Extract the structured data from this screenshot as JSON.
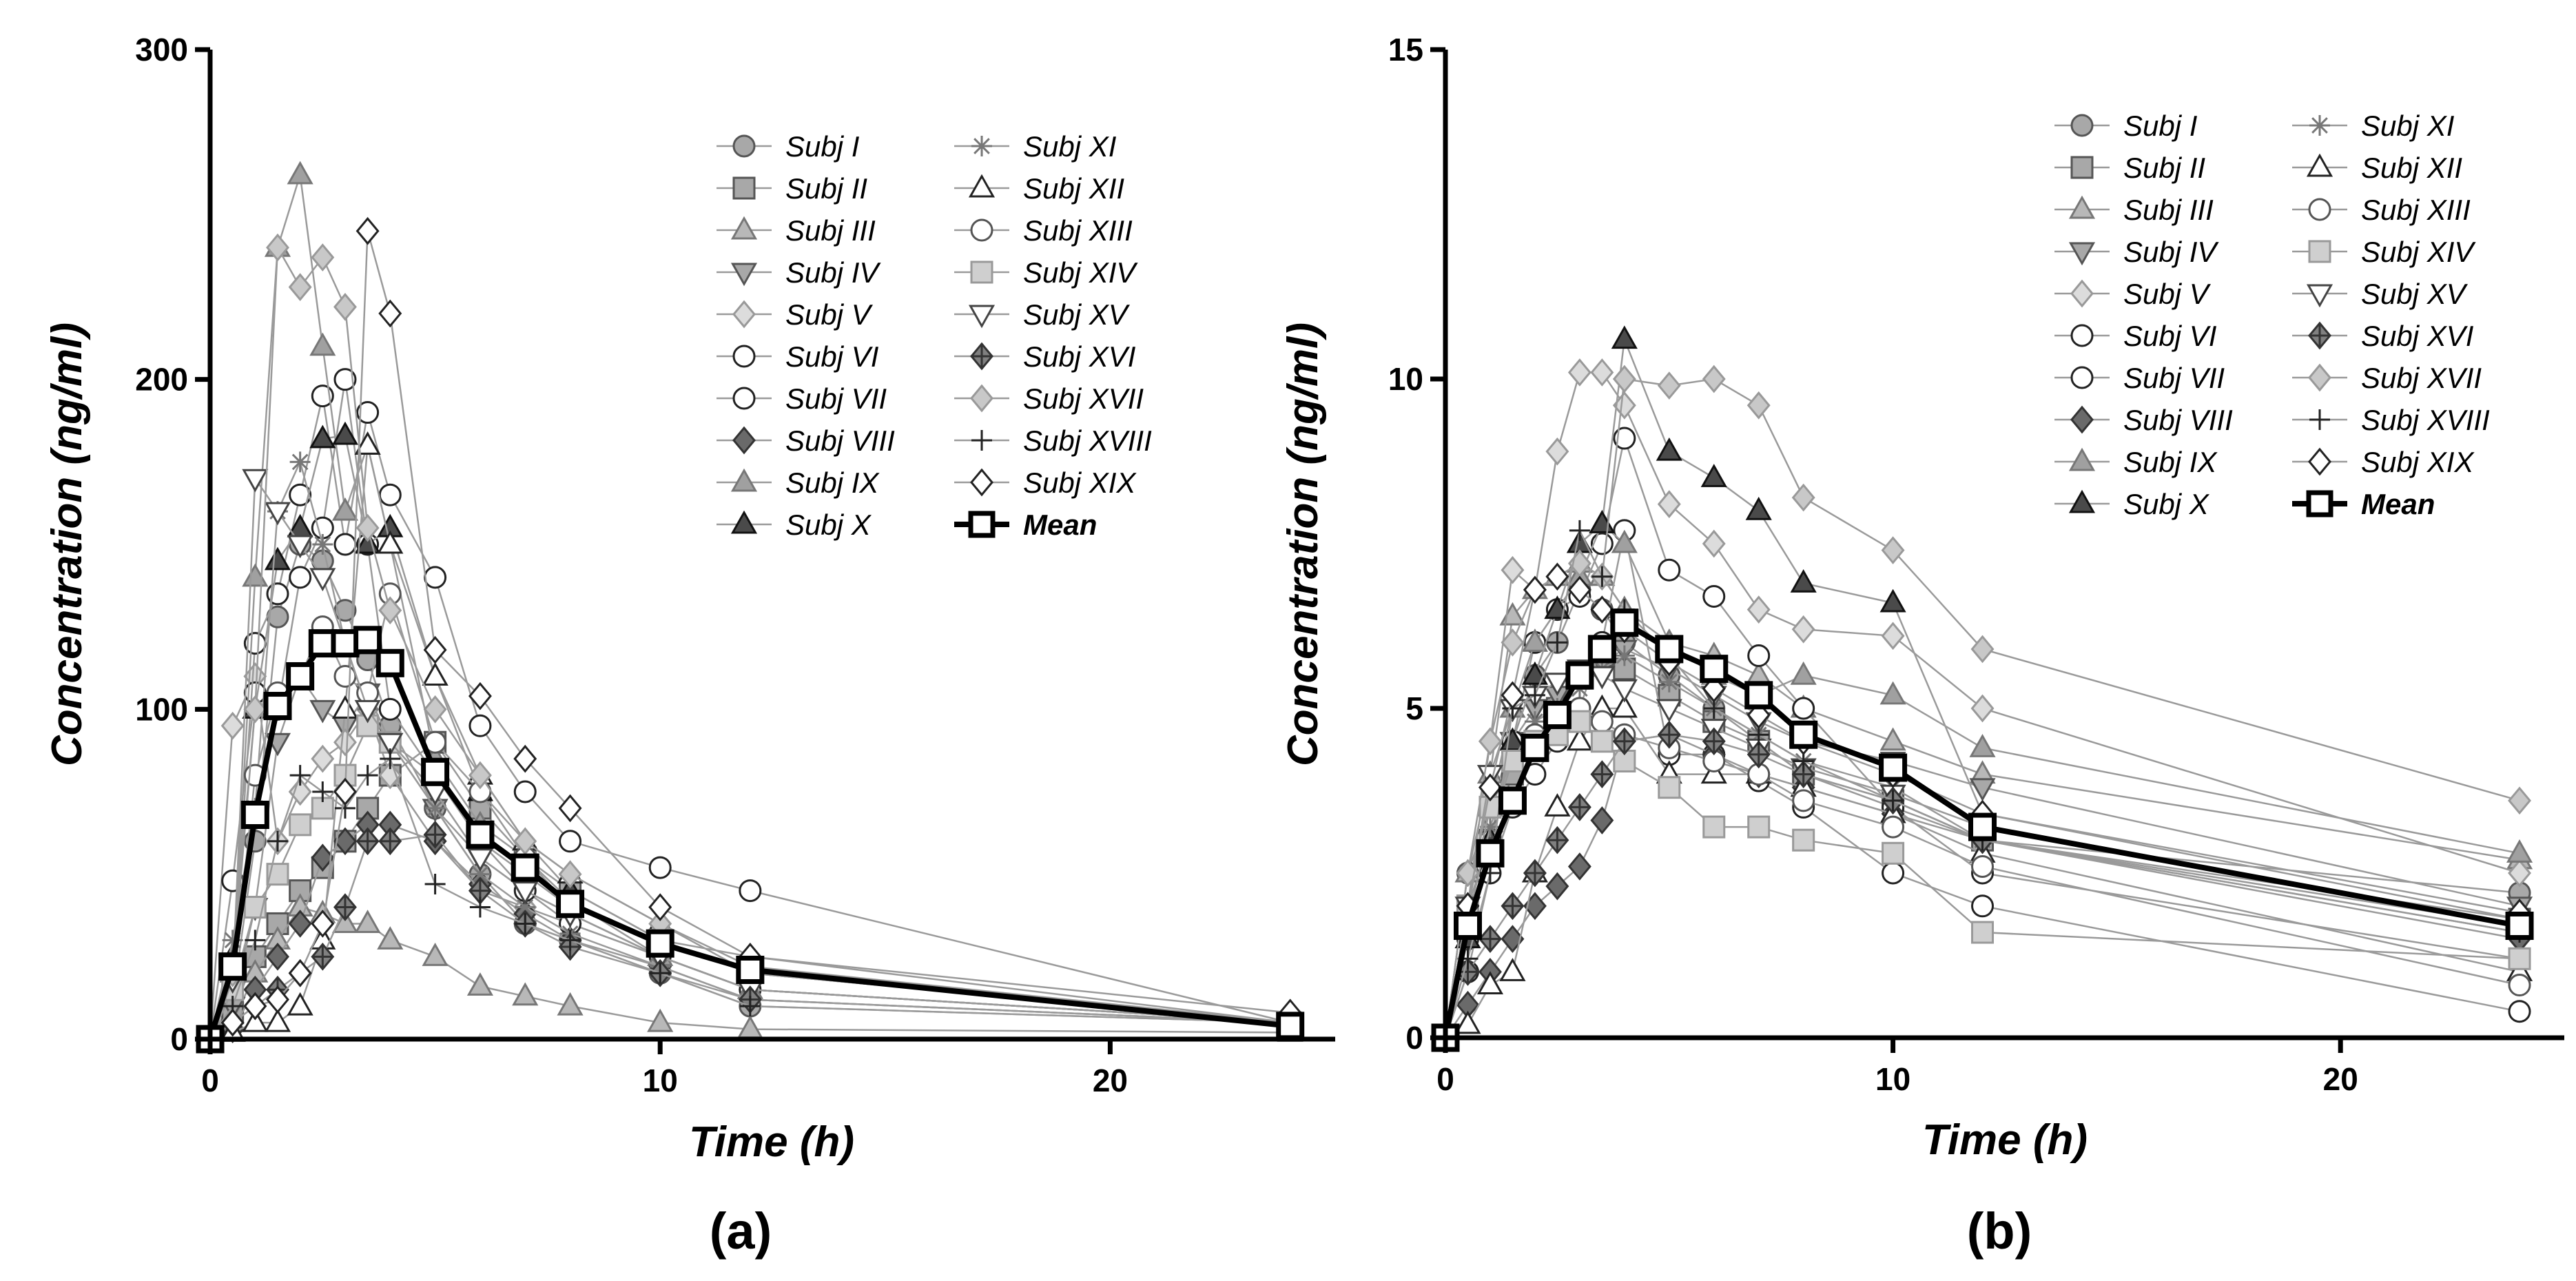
{
  "chart_data": [
    {
      "type": "line",
      "panel_label": "(a)",
      "xlabel": "Time (h)",
      "ylabel": "Concentration (ng/ml)",
      "xlim": [
        0,
        25
      ],
      "ylim": [
        0,
        300
      ],
      "xticks": [
        "0",
        "10",
        "20"
      ],
      "yticks": [
        "0",
        "100",
        "200",
        "300"
      ],
      "grid": false,
      "legend_position": "top-right",
      "x": [
        0,
        0.5,
        1,
        1.5,
        2,
        2.5,
        3,
        3.5,
        4,
        5,
        6,
        7,
        8,
        10,
        12,
        24
      ],
      "series": [
        {
          "name": "Subj I",
          "values": [
            0,
            12,
            60,
            128,
            150,
            145,
            130,
            115,
            95,
            70,
            50,
            35,
            30,
            20,
            10,
            5
          ]
        },
        {
          "name": "Subj II",
          "values": [
            0,
            8,
            25,
            35,
            45,
            52,
            60,
            70,
            80,
            90,
            70,
            55,
            45,
            30,
            20,
            5
          ]
        },
        {
          "name": "Subj III",
          "values": [
            0,
            5,
            20,
            30,
            40,
            38,
            35,
            35,
            30,
            25,
            16,
            13,
            10,
            5,
            3,
            2
          ]
        },
        {
          "name": "Subj IV",
          "values": [
            0,
            10,
            40,
            90,
            110,
            100,
            95,
            105,
            90,
            70,
            55,
            45,
            38,
            25,
            15,
            5
          ]
        },
        {
          "name": "Subj V",
          "values": [
            0,
            95,
            110,
            60,
            75,
            85,
            90,
            100,
            80,
            60,
            45,
            40,
            35,
            25,
            15,
            5
          ]
        },
        {
          "name": "Subj VI",
          "values": [
            0,
            48,
            105,
            100,
            140,
            155,
            200,
            150,
            100,
            80,
            60,
            45,
            35,
            25,
            15,
            5
          ]
        },
        {
          "name": "Subj VII",
          "values": [
            0,
            20,
            120,
            135,
            165,
            195,
            150,
            190,
            165,
            140,
            95,
            75,
            60,
            52,
            45,
            5
          ]
        },
        {
          "name": "Subj VIII",
          "values": [
            0,
            3,
            15,
            25,
            35,
            55,
            60,
            65,
            65,
            60,
            47,
            38,
            30,
            22,
            12,
            5
          ]
        },
        {
          "name": "Subj IX",
          "values": [
            0,
            20,
            140,
            240,
            262,
            210,
            160,
            180,
            150,
            85,
            65,
            55,
            42,
            25,
            15,
            5
          ]
        },
        {
          "name": "Subj X",
          "values": [
            0,
            25,
            100,
            145,
            155,
            182,
            183,
            150,
            155,
            110,
            75,
            60,
            45,
            30,
            25,
            5
          ]
        },
        {
          "name": "Subj XI",
          "values": [
            0,
            30,
            70,
            160,
            175,
            150,
            120,
            100,
            90,
            70,
            50,
            40,
            32,
            22,
            12,
            5
          ]
        },
        {
          "name": "Subj XII",
          "values": [
            0,
            2,
            5,
            5,
            10,
            30,
            100,
            180,
            150,
            110,
            80,
            60,
            50,
            35,
            20,
            5
          ]
        },
        {
          "name": "Subj XIII",
          "values": [
            0,
            15,
            80,
            105,
            110,
            125,
            110,
            105,
            135,
            90,
            75,
            55,
            40,
            30,
            20,
            5
          ]
        },
        {
          "name": "Subj XIV",
          "values": [
            0,
            15,
            40,
            50,
            65,
            70,
            80,
            95,
            90,
            80,
            60,
            50,
            40,
            30,
            20,
            5
          ]
        },
        {
          "name": "Subj XV",
          "values": [
            0,
            18,
            170,
            160,
            150,
            140,
            120,
            100,
            90,
            75,
            55,
            45,
            38,
            25,
            15,
            5
          ]
        },
        {
          "name": "Subj XVI",
          "values": [
            0,
            5,
            10,
            15,
            20,
            25,
            40,
            60,
            60,
            62,
            45,
            35,
            28,
            20,
            12,
            5
          ]
        },
        {
          "name": "Subj XVII",
          "values": [
            0,
            20,
            100,
            240,
            228,
            237,
            222,
            155,
            130,
            100,
            80,
            60,
            50,
            35,
            22,
            5
          ]
        },
        {
          "name": "Subj XVIII",
          "values": [
            0,
            10,
            30,
            60,
            80,
            75,
            70,
            80,
            85,
            47,
            40,
            35,
            30,
            20,
            10,
            5
          ]
        },
        {
          "name": "Subj XIX",
          "values": [
            0,
            5,
            10,
            12,
            20,
            35,
            75,
            245,
            220,
            118,
            104,
            85,
            70,
            40,
            25,
            8
          ]
        },
        {
          "name": "Mean",
          "values": [
            0,
            22,
            68,
            101,
            110,
            120,
            120,
            121,
            114,
            81,
            62,
            52,
            41,
            29,
            21,
            4
          ]
        }
      ]
    },
    {
      "type": "line",
      "panel_label": "(b)",
      "xlabel": "Time (h)",
      "ylabel": "Concentration (ng/ml)",
      "xlim": [
        0,
        25
      ],
      "ylim": [
        0,
        15
      ],
      "xticks": [
        "0",
        "10",
        "20"
      ],
      "yticks": [
        "0",
        "5",
        "10",
        "15"
      ],
      "grid": false,
      "legend_position": "top-right",
      "x": [
        0,
        0.5,
        1,
        1.5,
        2,
        2.5,
        3,
        3.5,
        4,
        5,
        6,
        7,
        8,
        10,
        12,
        24
      ],
      "series": [
        {
          "name": "Subj I",
          "values": [
            0,
            2.5,
            3.5,
            4.5,
            5.5,
            6.0,
            6.8,
            6.5,
            6.0,
            5.5,
            5.0,
            4.5,
            4.0,
            3.5,
            3.0,
            2.2
          ]
        },
        {
          "name": "Subj II",
          "values": [
            0,
            2.0,
            3.0,
            4.0,
            4.5,
            5.0,
            5.5,
            5.8,
            5.6,
            5.2,
            4.8,
            4.5,
            4.0,
            3.6,
            3.0,
            1.8
          ]
        },
        {
          "name": "Subj III",
          "values": [
            0,
            2.5,
            4.0,
            6.4,
            6.8,
            7.0,
            7.2,
            7.0,
            6.5,
            6.0,
            5.8,
            5.5,
            5.0,
            4.5,
            4.0,
            2.7
          ]
        },
        {
          "name": "Subj IV",
          "values": [
            0,
            1.5,
            3.0,
            4.5,
            5.0,
            5.2,
            5.5,
            5.7,
            5.9,
            5.6,
            5.2,
            4.8,
            4.5,
            4.2,
            3.8,
            2.0
          ]
        },
        {
          "name": "Subj V",
          "values": [
            0,
            2.0,
            4.5,
            7.1,
            6.8,
            8.9,
            10.1,
            10.1,
            9.6,
            8.1,
            7.5,
            6.5,
            6.2,
            6.1,
            5.0,
            2.5
          ]
        },
        {
          "name": "Subj VI",
          "values": [
            0,
            1.5,
            3.0,
            4.5,
            6.0,
            6.5,
            6.7,
            7.5,
            9.1,
            7.1,
            6.7,
            5.8,
            5.0,
            3.5,
            2.5,
            1.2
          ]
        },
        {
          "name": "Subj VII",
          "values": [
            0,
            1.0,
            2.5,
            3.5,
            4.0,
            4.5,
            5.0,
            6.0,
            7.7,
            4.3,
            4.3,
            3.9,
            3.5,
            2.5,
            2.0,
            0.4
          ]
        },
        {
          "name": "Subj VIII",
          "values": [
            0,
            0.5,
            1.0,
            1.5,
            2.0,
            2.3,
            2.6,
            3.3,
            4.5,
            4.6,
            4.3,
            4.0,
            3.8,
            3.4,
            3.0,
            1.5
          ]
        },
        {
          "name": "Subj IX",
          "values": [
            0,
            2.0,
            3.5,
            5.0,
            6.0,
            6.5,
            7.0,
            7.8,
            7.5,
            6.0,
            5.5,
            5.2,
            5.5,
            5.2,
            4.4,
            2.8
          ]
        },
        {
          "name": "Subj X",
          "values": [
            0,
            1.5,
            3.0,
            4.5,
            5.5,
            6.5,
            7.5,
            7.8,
            10.6,
            8.9,
            8.5,
            8.0,
            6.9,
            6.6,
            3.4,
            1.8
          ]
        },
        {
          "name": "Subj XI",
          "values": [
            0,
            1.8,
            3.2,
            4.2,
            4.8,
            5.0,
            5.3,
            5.6,
            5.8,
            5.4,
            5.0,
            4.6,
            4.2,
            3.8,
            3.0,
            1.6
          ]
        },
        {
          "name": "Subj XII",
          "values": [
            0,
            0.2,
            0.8,
            1.0,
            2.5,
            3.5,
            4.5,
            5.0,
            5.0,
            4.0,
            4.0,
            4.0,
            3.8,
            3.4,
            2.8,
            1.0
          ]
        },
        {
          "name": "Subj XIII",
          "values": [
            0,
            2.0,
            3.5,
            4.2,
            4.6,
            4.8,
            5.0,
            4.8,
            4.6,
            4.4,
            4.2,
            4.0,
            3.6,
            3.2,
            2.6,
            0.8
          ]
        },
        {
          "name": "Subj XIV",
          "values": [
            0,
            2.0,
            3.5,
            4.2,
            4.5,
            4.6,
            4.8,
            4.5,
            4.2,
            3.8,
            3.2,
            3.2,
            3.0,
            2.8,
            1.6,
            1.2
          ]
        },
        {
          "name": "Subj XV",
          "values": [
            0,
            2.0,
            4.0,
            5.0,
            5.2,
            5.4,
            5.6,
            5.5,
            5.3,
            5.0,
            4.7,
            4.4,
            4.1,
            3.7,
            3.2,
            1.7
          ]
        },
        {
          "name": "Subj XVI",
          "values": [
            0,
            1.0,
            1.5,
            2.0,
            2.5,
            3.0,
            3.5,
            4.0,
            4.5,
            4.6,
            4.5,
            4.3,
            4.0,
            3.6,
            3.0,
            1.7
          ]
        },
        {
          "name": "Subj XVII",
          "values": [
            0,
            2.5,
            4.5,
            6.0,
            6.8,
            7.0,
            7.2,
            7.0,
            10.0,
            9.9,
            10.0,
            9.6,
            8.2,
            7.4,
            5.9,
            3.6
          ]
        },
        {
          "name": "Subj XVIII",
          "values": [
            0,
            1.2,
            2.5,
            5.0,
            5.2,
            6.0,
            7.7,
            7.0,
            6.5,
            5.8,
            5.0,
            4.6,
            4.2,
            3.6,
            3.0,
            1.6
          ]
        },
        {
          "name": "Subj XIX",
          "values": [
            0,
            2.0,
            3.8,
            5.2,
            6.8,
            7.0,
            6.8,
            6.5,
            6.2,
            5.7,
            5.3,
            4.9,
            4.5,
            4.0,
            3.4,
            1.9
          ]
        },
        {
          "name": "Mean",
          "values": [
            0,
            1.7,
            2.8,
            3.6,
            4.4,
            4.9,
            5.5,
            5.9,
            6.3,
            5.9,
            5.6,
            5.2,
            4.6,
            4.1,
            3.2,
            1.7
          ]
        }
      ]
    }
  ]
}
